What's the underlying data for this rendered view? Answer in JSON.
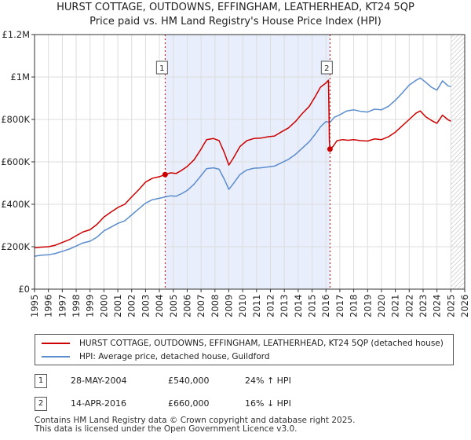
{
  "title_line1": "HURST COTTAGE, OUTDOWNS, EFFINGHAM, LEATHERHEAD, KT24 5QP",
  "title_line2": "Price paid vs. HM Land Registry's House Price Index (HPI)",
  "legend": {
    "property_label": "HURST COTTAGE, OUTDOWNS, EFFINGHAM, LEATHERHEAD, KT24 5QP (detached house)",
    "hpi_label": "HPI: Average price, detached house, Guildford"
  },
  "colors": {
    "property": "#cc0000",
    "hpi": "#5b8ccc",
    "shade": "#e8eefb",
    "grid": "#dddddd"
  },
  "sales": [
    {
      "number": "1",
      "date": "28-MAY-2004",
      "price": "£540,000",
      "hpi_change": "24% ↑ HPI",
      "year": 2004.41,
      "value": 540000
    },
    {
      "number": "2",
      "date": "14-APR-2016",
      "price": "£660,000",
      "hpi_change": "16% ↓ HPI",
      "year": 2016.29,
      "value": 660000
    }
  ],
  "footer": {
    "line1": "Contains HM Land Registry data © Crown copyright and database right 2025.",
    "line2": "This data is licensed under the Open Government Licence v3.0."
  },
  "chart_data": {
    "type": "line",
    "title": "Price paid vs. HM Land Registry's House Price Index (HPI)",
    "xlabel": "",
    "ylabel": "",
    "xlim": [
      1995,
      2026
    ],
    "ylim": [
      0,
      1200000
    ],
    "x_ticks": [
      1995,
      1996,
      1997,
      1998,
      1999,
      2000,
      2001,
      2002,
      2003,
      2004,
      2005,
      2006,
      2007,
      2008,
      2009,
      2010,
      2011,
      2012,
      2013,
      2014,
      2015,
      2016,
      2017,
      2018,
      2019,
      2020,
      2021,
      2022,
      2023,
      2024,
      2025,
      2026
    ],
    "y_ticks": [
      {
        "value": 0,
        "label": "£0"
      },
      {
        "value": 200000,
        "label": "£200K"
      },
      {
        "value": 400000,
        "label": "£400K"
      },
      {
        "value": 600000,
        "label": "£600K"
      },
      {
        "value": 800000,
        "label": "£800K"
      },
      {
        "value": 1000000,
        "label": "£1M"
      },
      {
        "value": 1200000,
        "label": "£1.2M"
      }
    ],
    "shaded_period": [
      2004.41,
      2016.29
    ],
    "future_hatch_from": 2025.0,
    "series": [
      {
        "name": "HURST COTTAGE, OUTDOWNS, EFFINGHAM, LEATHERHEAD, KT24 5QP (detached house)",
        "color": "#cc0000",
        "points": [
          [
            1995.0,
            195000
          ],
          [
            1995.5,
            198000
          ],
          [
            1996.0,
            200000
          ],
          [
            1996.5,
            207000
          ],
          [
            1997.0,
            220000
          ],
          [
            1997.5,
            233000
          ],
          [
            1998.0,
            252000
          ],
          [
            1998.5,
            270000
          ],
          [
            1999.0,
            280000
          ],
          [
            1999.5,
            305000
          ],
          [
            2000.0,
            340000
          ],
          [
            2000.5,
            363000
          ],
          [
            2001.0,
            385000
          ],
          [
            2001.5,
            400000
          ],
          [
            2002.0,
            435000
          ],
          [
            2002.5,
            468000
          ],
          [
            2003.0,
            505000
          ],
          [
            2003.5,
            523000
          ],
          [
            2004.0,
            530000
          ],
          [
            2004.41,
            540000
          ],
          [
            2004.8,
            548000
          ],
          [
            2005.2,
            545000
          ],
          [
            2005.6,
            560000
          ],
          [
            2006.0,
            578000
          ],
          [
            2006.5,
            610000
          ],
          [
            2007.0,
            660000
          ],
          [
            2007.4,
            705000
          ],
          [
            2007.9,
            710000
          ],
          [
            2008.3,
            700000
          ],
          [
            2008.7,
            640000
          ],
          [
            2009.0,
            585000
          ],
          [
            2009.3,
            615000
          ],
          [
            2009.8,
            672000
          ],
          [
            2010.3,
            700000
          ],
          [
            2010.8,
            710000
          ],
          [
            2011.3,
            712000
          ],
          [
            2011.8,
            718000
          ],
          [
            2012.3,
            722000
          ],
          [
            2012.8,
            742000
          ],
          [
            2013.3,
            760000
          ],
          [
            2013.8,
            790000
          ],
          [
            2014.3,
            828000
          ],
          [
            2014.8,
            862000
          ],
          [
            2015.2,
            905000
          ],
          [
            2015.6,
            952000
          ],
          [
            2016.0,
            972000
          ],
          [
            2016.18,
            985000
          ],
          [
            2016.22,
            840000
          ],
          [
            2016.25,
            695000
          ],
          [
            2016.29,
            660000
          ],
          [
            2016.5,
            672000
          ],
          [
            2016.8,
            700000
          ],
          [
            2017.2,
            705000
          ],
          [
            2017.6,
            702000
          ],
          [
            2018.0,
            705000
          ],
          [
            2018.5,
            700000
          ],
          [
            2019.0,
            698000
          ],
          [
            2019.5,
            708000
          ],
          [
            2020.0,
            705000
          ],
          [
            2020.5,
            718000
          ],
          [
            2021.0,
            740000
          ],
          [
            2021.5,
            770000
          ],
          [
            2022.0,
            800000
          ],
          [
            2022.5,
            830000
          ],
          [
            2022.8,
            840000
          ],
          [
            2023.2,
            812000
          ],
          [
            2023.6,
            795000
          ],
          [
            2024.0,
            782000
          ],
          [
            2024.4,
            820000
          ],
          [
            2024.8,
            798000
          ],
          [
            2025.0,
            792000
          ]
        ]
      },
      {
        "name": "HPI: Average price, detached house, Guildford",
        "color": "#5b8ccc",
        "points": [
          [
            1995.0,
            155000
          ],
          [
            1995.5,
            160000
          ],
          [
            1996.0,
            162000
          ],
          [
            1996.5,
            168000
          ],
          [
            1997.0,
            178000
          ],
          [
            1997.5,
            189000
          ],
          [
            1998.0,
            203000
          ],
          [
            1998.5,
            218000
          ],
          [
            1999.0,
            226000
          ],
          [
            1999.5,
            245000
          ],
          [
            2000.0,
            275000
          ],
          [
            2000.5,
            292000
          ],
          [
            2001.0,
            310000
          ],
          [
            2001.5,
            322000
          ],
          [
            2002.0,
            350000
          ],
          [
            2002.5,
            378000
          ],
          [
            2003.0,
            405000
          ],
          [
            2003.5,
            422000
          ],
          [
            2004.0,
            428000
          ],
          [
            2004.41,
            435000
          ],
          [
            2004.8,
            440000
          ],
          [
            2005.2,
            438000
          ],
          [
            2005.6,
            450000
          ],
          [
            2006.0,
            465000
          ],
          [
            2006.5,
            495000
          ],
          [
            2007.0,
            535000
          ],
          [
            2007.4,
            568000
          ],
          [
            2007.9,
            572000
          ],
          [
            2008.3,
            565000
          ],
          [
            2008.7,
            515000
          ],
          [
            2009.0,
            470000
          ],
          [
            2009.3,
            495000
          ],
          [
            2009.8,
            540000
          ],
          [
            2010.3,
            562000
          ],
          [
            2010.8,
            570000
          ],
          [
            2011.3,
            572000
          ],
          [
            2011.8,
            576000
          ],
          [
            2012.3,
            580000
          ],
          [
            2012.8,
            596000
          ],
          [
            2013.3,
            612000
          ],
          [
            2013.8,
            635000
          ],
          [
            2014.3,
            665000
          ],
          [
            2014.8,
            695000
          ],
          [
            2015.2,
            728000
          ],
          [
            2015.6,
            765000
          ],
          [
            2016.0,
            790000
          ],
          [
            2016.29,
            786000
          ],
          [
            2016.6,
            810000
          ],
          [
            2017.0,
            822000
          ],
          [
            2017.5,
            840000
          ],
          [
            2018.0,
            845000
          ],
          [
            2018.5,
            838000
          ],
          [
            2019.0,
            835000
          ],
          [
            2019.5,
            848000
          ],
          [
            2020.0,
            845000
          ],
          [
            2020.5,
            862000
          ],
          [
            2021.0,
            890000
          ],
          [
            2021.5,
            925000
          ],
          [
            2022.0,
            962000
          ],
          [
            2022.5,
            985000
          ],
          [
            2022.8,
            995000
          ],
          [
            2023.2,
            975000
          ],
          [
            2023.6,
            952000
          ],
          [
            2024.0,
            938000
          ],
          [
            2024.4,
            982000
          ],
          [
            2024.8,
            958000
          ],
          [
            2025.0,
            955000
          ]
        ]
      }
    ]
  }
}
